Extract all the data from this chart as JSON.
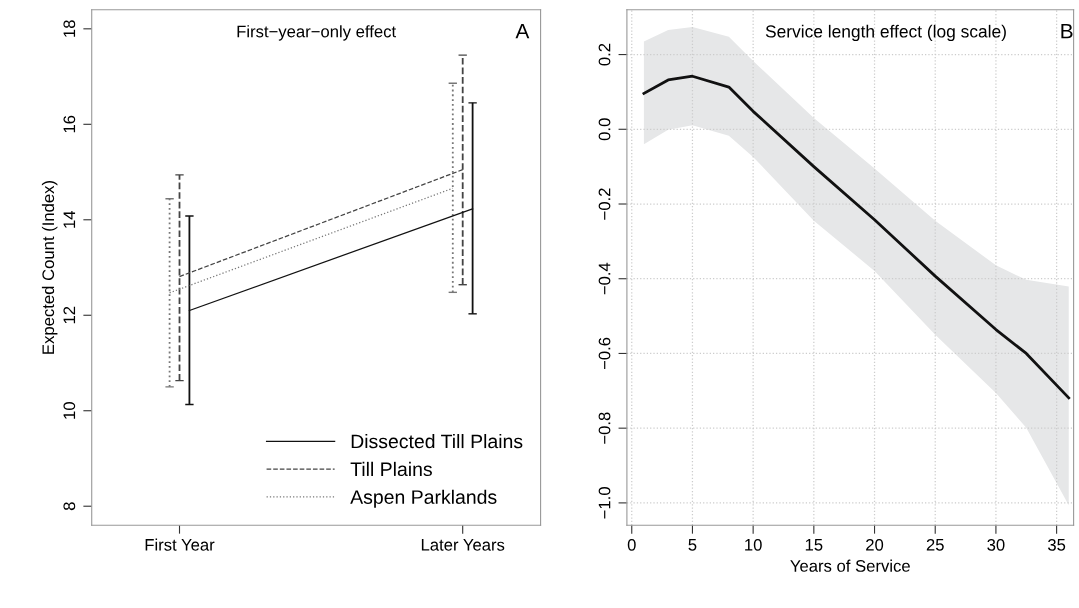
{
  "chart_data": [
    {
      "type": "line",
      "ylabel": "Expected Count (Index)",
      "categories": [
        "First Year",
        "Later Years"
      ],
      "ylim": [
        7.6,
        18.4
      ],
      "yticks": [
        8,
        10,
        12,
        14,
        16,
        18
      ],
      "grid": false,
      "legend": "bottom right",
      "annotations": [
        "First−year−only effect",
        "A"
      ],
      "series": [
        {
          "name": "Dissected Till Plains",
          "color": "#111111",
          "line_style": "solid",
          "values": [
            12.1,
            14.23
          ],
          "errors": [
            [
              10.13,
              14.08
            ],
            [
              12.03,
              16.45
            ]
          ]
        },
        {
          "name": "Till Plains",
          "color": "#444444",
          "line_style": "dashed",
          "values": [
            12.81,
            15.05
          ],
          "errors": [
            [
              10.63,
              14.94
            ],
            [
              12.64,
              17.45
            ]
          ]
        },
        {
          "name": "Aspen Parklands",
          "color": "#777777",
          "line_style": "dotted",
          "values": [
            12.47,
            14.66
          ],
          "errors": [
            [
              10.5,
              14.44
            ],
            [
              12.48,
              16.86
            ]
          ]
        }
      ]
    },
    {
      "type": "line",
      "xlabel": "Years of Service",
      "xlim": [
        -0.4,
        36.4
      ],
      "xticks": [
        0,
        5,
        10,
        15,
        20,
        25,
        30,
        35
      ],
      "ylim": [
        -1.06,
        0.32
      ],
      "yticks": [
        {
          "value": -1.0,
          "label": "−1.0"
        },
        {
          "value": -0.8,
          "label": "−0.8"
        },
        {
          "value": -0.6,
          "label": "−0.6"
        },
        {
          "value": -0.4,
          "label": "−0.4"
        },
        {
          "value": -0.2,
          "label": "−0.2"
        },
        {
          "value": 0.0,
          "label": "0.0"
        },
        {
          "value": 0.2,
          "label": "0.2"
        }
      ],
      "grid": true,
      "annotations": [
        "Service length effect (log scale)",
        "B"
      ],
      "series": [
        {
          "color": "#111111",
          "x": [
            1,
            3,
            5,
            8,
            10,
            15,
            20,
            25,
            30,
            32.5,
            36
          ],
          "values": [
            0.096,
            0.132,
            0.142,
            0.113,
            0.048,
            -0.1,
            -0.242,
            -0.393,
            -0.536,
            -0.6,
            -0.719
          ],
          "lower": [
            -0.04,
            -0.001,
            0.011,
            -0.017,
            -0.074,
            -0.245,
            -0.379,
            -0.55,
            -0.706,
            -0.799,
            -1.006
          ],
          "upper": [
            0.235,
            0.266,
            0.274,
            0.248,
            0.183,
            0.03,
            -0.105,
            -0.245,
            -0.364,
            -0.403,
            -0.421
          ]
        }
      ]
    }
  ]
}
